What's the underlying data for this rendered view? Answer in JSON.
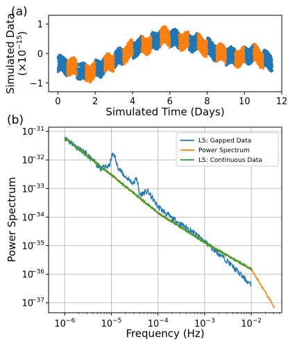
{
  "colors": {
    "gapped": "#1f77b4",
    "power": "#ff7f0e",
    "continuous": "#2ca02c"
  },
  "chart_data": [
    {
      "panel_label": "(a)",
      "type": "scatter",
      "xlabel": "Simulated Time (Days)",
      "ylabel_line1": "Simulated Data",
      "ylabel_line2": "(×10",
      "ylabel_exp": "−15",
      "ylabel_close": ")",
      "xlim": [
        -0.5,
        12
      ],
      "ylim": [
        -1.3,
        1.3
      ],
      "xticks": [
        0,
        2,
        4,
        6,
        8,
        10,
        12
      ],
      "yticks": [
        -1,
        0,
        1
      ],
      "grid": false,
      "series": [
        {
          "color_key": "gapped",
          "segments": [
            [
              0.0,
              0.5
            ],
            [
              1.0,
              1.5
            ],
            [
              2.0,
              2.5
            ],
            [
              3.0,
              3.5
            ],
            [
              4.0,
              4.5
            ],
            [
              5.0,
              5.5
            ],
            [
              6.0,
              6.5
            ],
            [
              7.0,
              7.5
            ],
            [
              8.0,
              8.5
            ],
            [
              9.0,
              9.5
            ],
            [
              10.0,
              10.5
            ],
            [
              11.0,
              11.5
            ]
          ]
        },
        {
          "color_key": "power",
          "segments": [
            [
              0.5,
              1.0
            ],
            [
              1.5,
              2.0
            ],
            [
              2.5,
              3.0
            ],
            [
              3.5,
              4.0
            ],
            [
              4.5,
              5.0
            ],
            [
              5.5,
              6.0
            ],
            [
              6.5,
              7.0
            ],
            [
              7.5,
              8.0
            ],
            [
              8.5,
              9.0
            ],
            [
              9.5,
              10.0
            ],
            [
              10.5,
              11.0
            ]
          ]
        }
      ],
      "trend": [
        [
          0,
          -0.35
        ],
        [
          1,
          -0.5
        ],
        [
          1.5,
          -0.7
        ],
        [
          2,
          -0.55
        ],
        [
          3,
          -0.25
        ],
        [
          4,
          0.15
        ],
        [
          5,
          0.35
        ],
        [
          5.6,
          0.6
        ],
        [
          6.5,
          0.45
        ],
        [
          7.5,
          0.35
        ],
        [
          8.5,
          0.05
        ],
        [
          9.5,
          -0.15
        ],
        [
          10.5,
          0.0
        ],
        [
          11,
          -0.2
        ],
        [
          11.5,
          -0.3
        ]
      ],
      "noise_amplitude": 0.28
    },
    {
      "panel_label": "(b)",
      "type": "line",
      "xlabel": "Frequency (Hz)",
      "ylabel": "Power Spectrum",
      "xscale": "log",
      "yscale": "log",
      "xlim": [
        4.5e-07,
        0.045
      ],
      "ylim": [
        4.5e-38,
        1.4e-31
      ],
      "xticks": [
        1e-06,
        1e-05,
        0.0001,
        0.001,
        0.01
      ],
      "yticks": [
        1e-37,
        1e-36,
        1e-35,
        1e-34,
        1e-33,
        1e-32,
        1e-31
      ],
      "tick_base": "10",
      "xtick_exponents": [
        "−6",
        "−5",
        "−4",
        "−3",
        "−2"
      ],
      "ytick_exponents": [
        "−37",
        "−36",
        "−35",
        "−34",
        "−33",
        "−32",
        "−31"
      ],
      "grid": true,
      "legend_position": "top-right",
      "series": [
        {
          "name": "LS: Gapped Data",
          "color_key": "gapped",
          "x": [
            1e-06,
            3e-06,
            6e-06,
            9e-06,
            1.05e-05,
            1.15e-05,
            1.3e-05,
            1.8e-05,
            3e-05,
            3.5e-05,
            4e-05,
            6e-05,
            0.0001,
            0.0002,
            0.0005,
            0.001,
            0.003,
            0.01
          ],
          "y": [
            6e-32,
            1.5e-32,
            5e-33,
            6e-33,
            1.5e-32,
            1.6e-32,
            7e-33,
            3e-33,
            1.5e-33,
            2.5e-33,
            6e-34,
            8e-34,
            2.3e-34,
            9e-35,
            3.5e-35,
            1.4e-35,
            3e-36,
            4e-37
          ]
        },
        {
          "name": "Power Spectrum",
          "color_key": "power",
          "x": [
            1e-06,
            1e-05,
            0.0001,
            0.001,
            0.01,
            0.032
          ],
          "y": [
            6e-32,
            3e-33,
            1.4e-34,
            1.3e-35,
            1.5e-36,
            6.5e-38
          ]
        },
        {
          "name": "LS: Continuous Data",
          "color_key": "continuous",
          "x": [
            1e-06,
            1e-05,
            0.0001,
            0.001,
            0.01
          ],
          "y": [
            6e-32,
            3e-33,
            1.4e-34,
            1.3e-35,
            1.5e-36
          ]
        }
      ]
    }
  ]
}
